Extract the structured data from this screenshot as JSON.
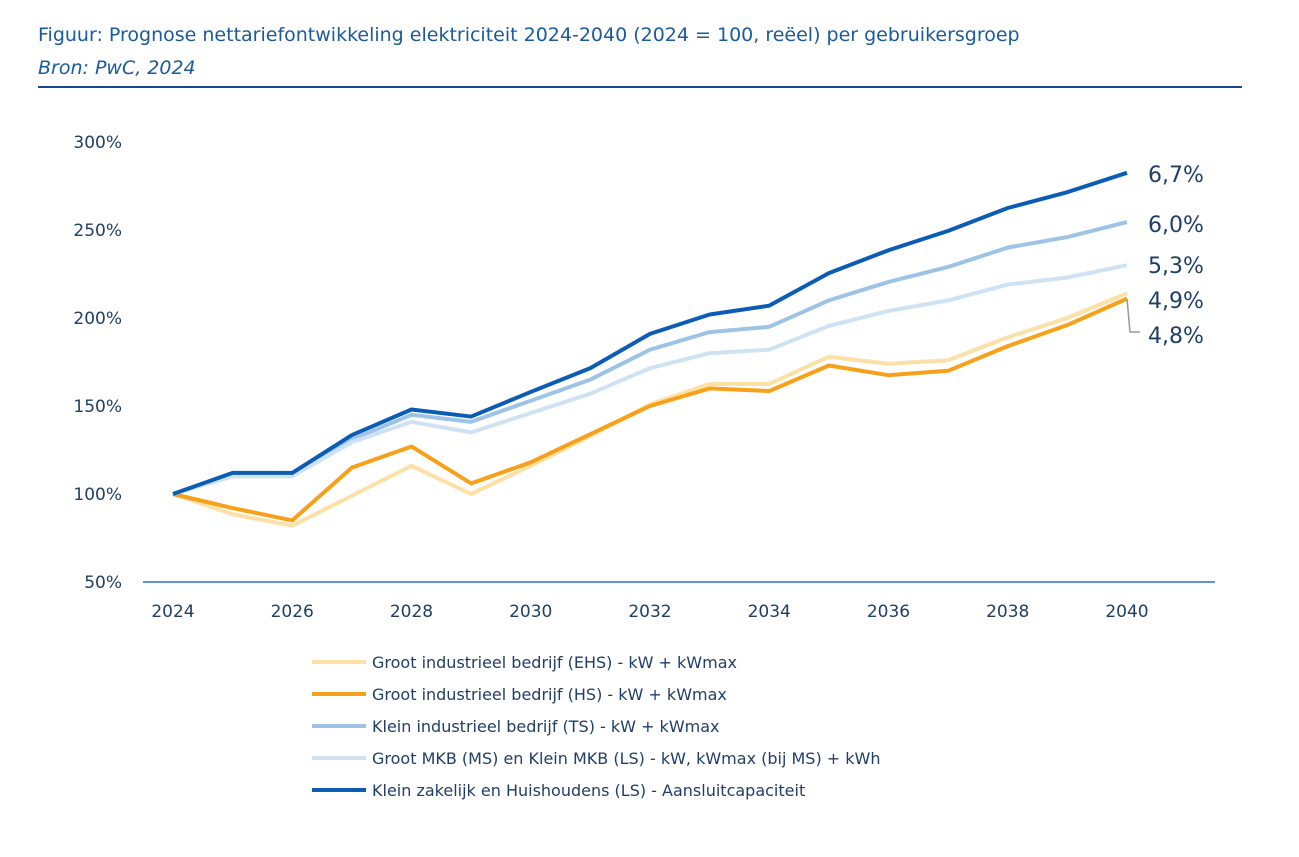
{
  "header": {
    "title": "Figuur: Prognose nettariefontwikkeling elektriciteit 2024-2040 (2024 = 100, reëel) per gebruikersgroep",
    "source": "Bron: PwC, 2024"
  },
  "chart_data": {
    "type": "line",
    "title": "Figuur: Prognose nettariefontwikkeling elektriciteit 2024-2040 (2024 = 100, reëel) per gebruikersgroep",
    "xlabel": "",
    "ylabel": "",
    "x": [
      2024,
      2025,
      2026,
      2027,
      2028,
      2029,
      2030,
      2031,
      2032,
      2033,
      2034,
      2035,
      2036,
      2037,
      2038,
      2039,
      2040
    ],
    "xticks": [
      "2024",
      "2026",
      "2028",
      "2030",
      "2032",
      "2034",
      "2036",
      "2038",
      "2040"
    ],
    "yticks": [
      "50%",
      "100%",
      "150%",
      "200%",
      "250%",
      "300%"
    ],
    "ylim": [
      50,
      300
    ],
    "grid": false,
    "legend_position": "bottom",
    "series": [
      {
        "name": "Groot industrieel bedrijf (EHS) - kW + kWmax",
        "color": "#fde0a6",
        "end_label": "4,9%",
        "values": [
          100,
          88.5,
          82,
          99,
          116,
          100,
          116,
          133,
          151,
          162.5,
          162.5,
          178,
          174,
          176,
          189,
          200,
          214
        ]
      },
      {
        "name": "Groot industrieel bedrijf (HS) - kW + kWmax",
        "color": "#f7a11a",
        "end_label": "4,8%",
        "values": [
          100,
          92,
          85,
          115,
          127,
          106,
          118,
          134,
          150,
          160,
          158.5,
          173,
          167.5,
          170,
          184,
          196,
          211
        ]
      },
      {
        "name": "Klein industrieel bedrijf (TS) - kW + kWmax",
        "color": "#9dc3e6",
        "end_label": "6,0%",
        "values": [
          100,
          111,
          111,
          131,
          145,
          141,
          153,
          165,
          182,
          192,
          195,
          210,
          220.5,
          229,
          240,
          246,
          254.5
        ]
      },
      {
        "name": "Groot MKB (MS) en Klein MKB (LS) - kW, kWmax (bij MS) + kWh",
        "color": "#cfe2f3",
        "end_label": "5,3%",
        "values": [
          100,
          110,
          110,
          129.5,
          141,
          135,
          146,
          157,
          171.5,
          180,
          182,
          195.5,
          204,
          210,
          219,
          223,
          230
        ]
      },
      {
        "name": "Klein zakelijk en Huishoudens (LS) - Aansluitcapaciteit",
        "color": "#0b5cb5",
        "end_label": "6,7%",
        "values": [
          100,
          112,
          112,
          133.5,
          148,
          144,
          158,
          171.5,
          191,
          202,
          207,
          225.5,
          238.5,
          249.5,
          262.5,
          271.5,
          282.5
        ]
      }
    ]
  }
}
